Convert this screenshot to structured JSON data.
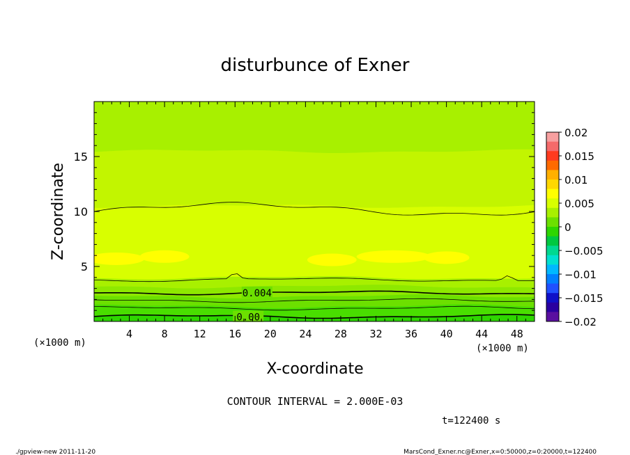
{
  "chart_data": {
    "type": "contour",
    "title": "disturbunce of Exner",
    "xlabel": "X-coordinate",
    "ylabel": "Z-coordinate",
    "x_unit": "(×1000 m)",
    "y_unit": "(×1000 m)",
    "xlim": [
      0,
      50
    ],
    "ylim": [
      0,
      20
    ],
    "x_ticks": [
      4,
      8,
      12,
      16,
      20,
      24,
      28,
      32,
      36,
      40,
      44,
      48
    ],
    "x_tick_labels": [
      "4",
      "8",
      "12",
      "16",
      "20",
      "24",
      "28",
      "32",
      "36",
      "40",
      "44",
      "48"
    ],
    "y_ticks": [
      5,
      10,
      15
    ],
    "y_tick_labels": [
      "5",
      "10",
      "15"
    ],
    "contour_interval": 0.002,
    "contour_interval_text": "CONTOUR INTERVAL = 2.000E-03",
    "contour_labels": [
      {
        "text": "0.004",
        "x": 18.5,
        "z": 2.6
      },
      {
        "text": "0.00",
        "x": 17.5,
        "z": 0.4
      }
    ],
    "colorbar": {
      "ticks": [
        0.02,
        0.015,
        0.01,
        0.005,
        0,
        -0.005,
        -0.01,
        -0.015,
        -0.02
      ],
      "tick_labels": [
        "0.02",
        "0.015",
        "0.01",
        "0.005",
        "0",
        "−0.005",
        "−0.01",
        "−0.015",
        "−0.02"
      ],
      "colors_top_to_bottom": [
        "#f7a0a0",
        "#f56a6a",
        "#ff3b1f",
        "#ff6a00",
        "#ffb000",
        "#ffd800",
        "#ffff00",
        "#d8ff00",
        "#a8f000",
        "#6ce000",
        "#2ed600",
        "#00c840",
        "#00d890",
        "#00e0d0",
        "#00b8ff",
        "#0080ff",
        "#2050ff",
        "#1010c8",
        "#2a00a0",
        "#5a10a0"
      ]
    },
    "time_text": "t=122400 s",
    "approx_levels_by_height": [
      {
        "z_range": [
          0,
          0.5
        ],
        "value_approx": -0.001,
        "color": "#2ed600"
      },
      {
        "z_range": [
          0.5,
          1.4
        ],
        "value_approx": 0.0005,
        "color": "#49de00"
      },
      {
        "z_range": [
          1.4,
          2.3
        ],
        "value_approx": 0.0015,
        "color": "#6ce000"
      },
      {
        "z_range": [
          2.3,
          3.2
        ],
        "value_approx": 0.0025,
        "color": "#8ee800"
      },
      {
        "z_range": [
          3.2,
          4.0
        ],
        "value_approx": 0.0035,
        "color": "#a8f000"
      },
      {
        "z_range": [
          4.0,
          10.5
        ],
        "value_approx": 0.0045,
        "color": "#d8ff00"
      },
      {
        "z_range": [
          10.5,
          15.5
        ],
        "value_approx": 0.004,
        "color": "#c2f500"
      },
      {
        "z_range": [
          15.5,
          20
        ],
        "value_approx": 0.003,
        "color": "#a8f000"
      }
    ]
  },
  "footer": {
    "left": "./gpview-new  2011-11-20",
    "right": "MarsCond_Exner.nc@Exner,x=0:50000,z=0:20000,t=122400"
  }
}
